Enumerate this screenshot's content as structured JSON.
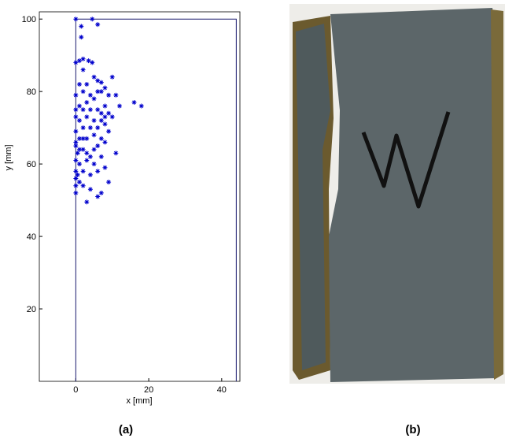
{
  "chart_data": {
    "type": "scatter",
    "xlabel": "x [mm]",
    "ylabel": "y [mm]",
    "xlim": [
      -10,
      45
    ],
    "ylim": [
      0,
      102
    ],
    "xticks": [
      0,
      20,
      40
    ],
    "yticks": [
      20,
      40,
      60,
      80,
      100
    ],
    "grid": false,
    "color": "#0000cc",
    "outline_color": "#1a1a6e",
    "x": [
      0,
      4.5,
      6,
      1.5,
      1.5,
      0,
      1,
      2,
      3.5,
      4.5,
      2,
      5,
      6,
      7,
      10,
      1,
      3,
      0,
      2,
      4,
      6,
      7,
      8,
      9,
      11,
      5,
      3,
      1,
      0,
      2,
      4,
      6,
      7,
      8,
      9,
      12,
      16,
      18,
      0,
      1,
      3,
      5,
      7,
      8,
      10,
      2,
      4,
      6,
      8,
      9,
      0,
      1,
      3,
      5,
      7,
      8,
      0,
      0,
      1,
      2,
      0.5,
      3,
      5,
      7,
      11,
      0,
      1,
      3,
      5,
      8,
      0,
      2,
      4,
      6,
      0,
      1,
      9,
      0,
      2,
      4,
      7,
      0,
      6,
      3,
      0.5,
      4,
      6,
      2
    ],
    "y": [
      100,
      100,
      98.5,
      98,
      95,
      88,
      88.5,
      89,
      88.5,
      88,
      86,
      84,
      83,
      82.5,
      84,
      82,
      82,
      79,
      80,
      79,
      80,
      80,
      81,
      79,
      79,
      78,
      77,
      76,
      75,
      75,
      75,
      75,
      74,
      76,
      74,
      76,
      77,
      76,
      73,
      72,
      73,
      72,
      72,
      73,
      73,
      70,
      70,
      70,
      71,
      69,
      69,
      67,
      67,
      68,
      67,
      66,
      66,
      65,
      64,
      64,
      63,
      63,
      64,
      62,
      63,
      61,
      60,
      61,
      60,
      59,
      58,
      58,
      57,
      58,
      56,
      55,
      55,
      54,
      54,
      53,
      52,
      52,
      51,
      49.5,
      57,
      62,
      65,
      67
    ],
    "outline": {
      "x": [
        0,
        0,
        44,
        44
      ],
      "y": [
        0,
        100,
        100,
        0
      ]
    }
  },
  "captions": [
    "(a)",
    "(b)"
  ]
}
